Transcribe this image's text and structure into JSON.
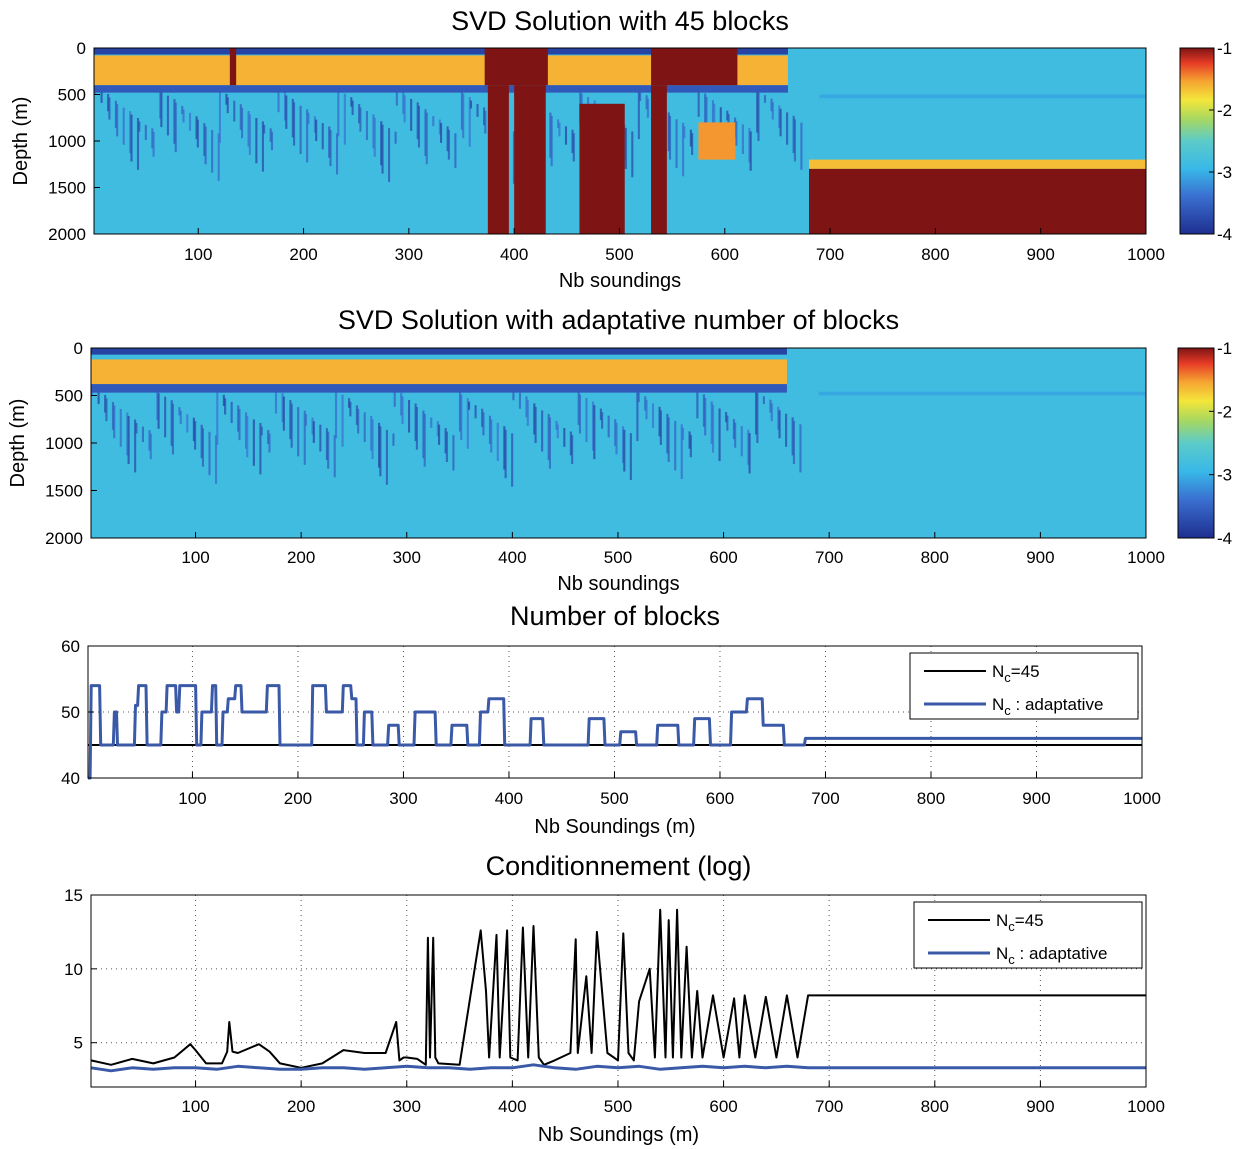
{
  "chart_data": [
    {
      "type": "heatmap",
      "title": "SVD Solution with 45 blocks",
      "xlabel": "Nb soundings",
      "ylabel": "Depth (m)",
      "xlim": [
        1,
        1000
      ],
      "ylim": [
        0,
        2000
      ],
      "y_reversed": true,
      "xticks": [
        "100",
        "200",
        "300",
        "400",
        "500",
        "600",
        "700",
        "800",
        "900",
        "1000"
      ],
      "yticks": [
        "0",
        "500",
        "1000",
        "1500",
        "2000"
      ],
      "colorbar": {
        "range": [
          -4,
          -1
        ],
        "ticks": [
          "-1",
          "-2",
          "-3",
          "-4"
        ],
        "colormap": "jet"
      },
      "background_value": -2.85,
      "features": [
        {
          "kind": "layer",
          "x": [
            1,
            660
          ],
          "depth": [
            80,
            400
          ],
          "value": -1.6
        },
        {
          "kind": "layer",
          "x": [
            1,
            660
          ],
          "depth": [
            0,
            70
          ],
          "value": -3.8
        },
        {
          "kind": "layer",
          "x": [
            1,
            660
          ],
          "depth": [
            400,
            480
          ],
          "value": -3.6
        },
        {
          "kind": "layer",
          "x": [
            690,
            1000
          ],
          "depth": [
            500,
            540
          ],
          "value": -3.05
        },
        {
          "kind": "layer",
          "x": [
            680,
            1000
          ],
          "depth": [
            1200,
            1300
          ],
          "value": -1.65
        },
        {
          "kind": "layer",
          "x": [
            680,
            1000
          ],
          "depth": [
            1300,
            2000
          ],
          "value": -1.0
        },
        {
          "kind": "column",
          "x": [
            130,
            136
          ],
          "depth": [
            0,
            400
          ],
          "value": -1.0
        },
        {
          "kind": "column",
          "x": [
            372,
            432
          ],
          "depth": [
            0,
            400
          ],
          "value": -1.0
        },
        {
          "kind": "column",
          "x": [
            530,
            612
          ],
          "depth": [
            0,
            400
          ],
          "value": -1.0
        },
        {
          "kind": "column",
          "x": [
            375,
            395
          ],
          "depth": [
            400,
            2000
          ],
          "value": -1.0
        },
        {
          "kind": "column",
          "x": [
            400,
            430
          ],
          "depth": [
            400,
            2000
          ],
          "value": -1.0
        },
        {
          "kind": "column",
          "x": [
            462,
            505
          ],
          "depth": [
            600,
            2000
          ],
          "value": -1.0
        },
        {
          "kind": "column",
          "x": [
            530,
            545
          ],
          "depth": [
            400,
            2000
          ],
          "value": -1.0
        },
        {
          "kind": "column",
          "x": [
            575,
            610
          ],
          "depth": [
            800,
            1200
          ],
          "value": -1.5
        }
      ]
    },
    {
      "type": "heatmap",
      "title": "SVD Solution with adaptative number of blocks",
      "xlabel": "Nb soundings",
      "ylabel": "Depth (m)",
      "xlim": [
        1,
        1000
      ],
      "ylim": [
        0,
        2000
      ],
      "y_reversed": true,
      "xticks": [
        "100",
        "200",
        "300",
        "400",
        "500",
        "600",
        "700",
        "800",
        "900",
        "1000"
      ],
      "yticks": [
        "0",
        "500",
        "1000",
        "1500",
        "2000"
      ],
      "colorbar": {
        "range": [
          -4,
          -1
        ],
        "ticks": [
          "-1",
          "-2",
          "-3",
          "-4"
        ],
        "colormap": "jet"
      },
      "background_value": -2.85,
      "features": [
        {
          "kind": "layer",
          "x": [
            1,
            660
          ],
          "depth": [
            120,
            380
          ],
          "value": -1.6
        },
        {
          "kind": "layer",
          "x": [
            1,
            660
          ],
          "depth": [
            0,
            70
          ],
          "value": -3.8
        },
        {
          "kind": "layer",
          "x": [
            1,
            660
          ],
          "depth": [
            380,
            470
          ],
          "value": -3.6
        },
        {
          "kind": "layer",
          "x": [
            690,
            1000
          ],
          "depth": [
            460,
            500
          ],
          "value": -3.05
        }
      ]
    },
    {
      "type": "line",
      "title": "Number of blocks",
      "xlabel": "Nb Soundings (m)",
      "ylabel": "",
      "xlim": [
        1,
        1000
      ],
      "ylim": [
        40,
        60
      ],
      "grid": true,
      "legend": "top-right",
      "xticks": [
        "100",
        "200",
        "300",
        "400",
        "500",
        "600",
        "700",
        "800",
        "900",
        "1000"
      ],
      "yticks": [
        "40",
        "50",
        "60"
      ],
      "series": [
        {
          "name": "Nc=45",
          "color": "#000000",
          "x": [
            1,
            1000
          ],
          "y": [
            45,
            45
          ]
        },
        {
          "name": "Nc : adaptative",
          "color": "#3a5aa8",
          "x": [
            1,
            3,
            4,
            12,
            13,
            25,
            26,
            28,
            29,
            33,
            34,
            45,
            46,
            48,
            49,
            56,
            57,
            70,
            71,
            75,
            76,
            84,
            85,
            87,
            88,
            103,
            104,
            108,
            109,
            118,
            119,
            122,
            123,
            128,
            129,
            133,
            134,
            140,
            141,
            146,
            147,
            170,
            171,
            182,
            183,
            188,
            189,
            213,
            214,
            226,
            227,
            242,
            243,
            250,
            251,
            255,
            256,
            262,
            263,
            270,
            271,
            285,
            286,
            295,
            296,
            310,
            311,
            330,
            331,
            345,
            346,
            360,
            361,
            372,
            373,
            380,
            381,
            395,
            396,
            420,
            421,
            432,
            433,
            450,
            451,
            475,
            476,
            490,
            491,
            505,
            506,
            520,
            521,
            540,
            541,
            560,
            561,
            575,
            576,
            590,
            591,
            610,
            611,
            625,
            626,
            640,
            641,
            660,
            661,
            680,
            681,
            1000
          ],
          "y": [
            40,
            40,
            54,
            54,
            45,
            45,
            50,
            50,
            45,
            45,
            45,
            45,
            51,
            51,
            54,
            54,
            45,
            45,
            50,
            50,
            54,
            54,
            50,
            50,
            54,
            54,
            45,
            45,
            50,
            50,
            54,
            54,
            45,
            45,
            50,
            50,
            52,
            52,
            54,
            54,
            50,
            50,
            54,
            54,
            45,
            45,
            45,
            45,
            54,
            54,
            50,
            50,
            54,
            54,
            52,
            52,
            45,
            45,
            50,
            50,
            45,
            45,
            48,
            48,
            45,
            45,
            50,
            50,
            45,
            45,
            48,
            48,
            45,
            45,
            50,
            50,
            52,
            52,
            45,
            45,
            49,
            49,
            45,
            45,
            45,
            45,
            49,
            49,
            45,
            45,
            47,
            47,
            45,
            45,
            48,
            48,
            45,
            45,
            49,
            49,
            45,
            45,
            50,
            50,
            52,
            52,
            48,
            48,
            45,
            45,
            46,
            46
          ]
        }
      ]
    },
    {
      "type": "line",
      "title": "Conditionnement (log)",
      "xlabel": "Nb Soundings (m)",
      "ylabel": "",
      "xlim": [
        1,
        1000
      ],
      "ylim": [
        2,
        15
      ],
      "grid": true,
      "legend": "top-right",
      "xticks": [
        "100",
        "200",
        "300",
        "400",
        "500",
        "600",
        "700",
        "800",
        "900",
        "1000"
      ],
      "yticks": [
        "5",
        "10",
        "15"
      ],
      "series": [
        {
          "name": "Nc=45",
          "color": "#000000",
          "x": [
            1,
            20,
            40,
            60,
            80,
            95,
            100,
            110,
            125,
            130,
            132,
            135,
            140,
            160,
            170,
            180,
            200,
            220,
            240,
            260,
            280,
            290,
            293,
            297,
            300,
            310,
            318,
            320,
            322,
            325,
            327,
            330,
            350,
            370,
            375,
            378,
            385,
            388,
            395,
            398,
            405,
            410,
            415,
            420,
            425,
            430,
            440,
            455,
            460,
            462,
            470,
            475,
            480,
            490,
            500,
            505,
            510,
            515,
            520,
            530,
            535,
            540,
            545,
            548,
            552,
            556,
            560,
            565,
            570,
            575,
            580,
            590,
            600,
            610,
            615,
            620,
            630,
            640,
            650,
            660,
            670,
            680,
            681,
            1000
          ],
          "y": [
            3.8,
            3.5,
            3.9,
            3.6,
            4.0,
            4.9,
            4.5,
            3.6,
            3.6,
            4.4,
            6.4,
            4.4,
            4.3,
            4.9,
            4.4,
            3.6,
            3.3,
            3.6,
            4.5,
            4.3,
            4.3,
            6.4,
            3.8,
            4.0,
            4.0,
            3.9,
            3.5,
            12.1,
            4.0,
            12.1,
            4.0,
            3.6,
            3.5,
            12.6,
            8.5,
            4.0,
            12.3,
            4.0,
            12.6,
            4.0,
            3.8,
            12.8,
            4.0,
            12.9,
            4.0,
            3.5,
            3.8,
            4.3,
            12.0,
            4.3,
            9.5,
            4.3,
            12.5,
            4.3,
            3.8,
            12.4,
            4.3,
            3.8,
            7.8,
            10.0,
            4.0,
            14.0,
            4.0,
            13.3,
            4.0,
            14.0,
            4.0,
            11.5,
            4.0,
            8.5,
            4.0,
            8.2,
            4.0,
            8.0,
            4.0,
            8.2,
            4.0,
            8.1,
            4.0,
            8.2,
            4.0,
            8.2,
            8.2,
            8.2
          ]
        },
        {
          "name": "Nc : adaptative",
          "color": "#3a5aa8",
          "x": [
            1,
            20,
            40,
            60,
            80,
            100,
            120,
            140,
            160,
            180,
            200,
            220,
            240,
            260,
            280,
            300,
            320,
            340,
            360,
            380,
            400,
            420,
            440,
            460,
            480,
            500,
            520,
            540,
            560,
            580,
            600,
            620,
            640,
            660,
            680,
            681,
            1000
          ],
          "y": [
            3.3,
            3.1,
            3.3,
            3.2,
            3.3,
            3.3,
            3.2,
            3.4,
            3.3,
            3.2,
            3.2,
            3.3,
            3.3,
            3.2,
            3.3,
            3.4,
            3.3,
            3.3,
            3.2,
            3.3,
            3.3,
            3.5,
            3.3,
            3.2,
            3.4,
            3.3,
            3.4,
            3.2,
            3.3,
            3.4,
            3.3,
            3.4,
            3.3,
            3.4,
            3.3,
            3.3,
            3.3
          ]
        }
      ]
    }
  ]
}
